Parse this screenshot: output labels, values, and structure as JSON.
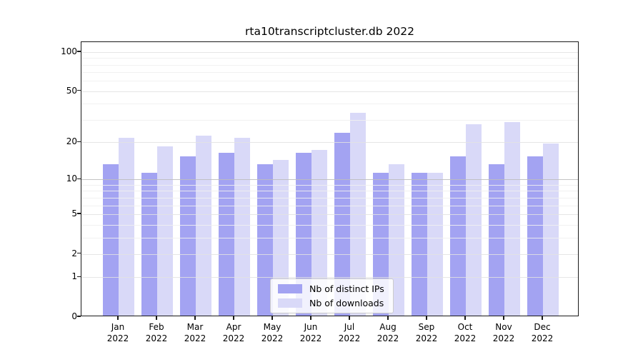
{
  "chart_data": {
    "type": "bar",
    "title": "rta10transcriptcluster.db 2022",
    "categories": [
      "Jan 2022",
      "Feb 2022",
      "Mar 2022",
      "Apr 2022",
      "May 2022",
      "Jun 2022",
      "Jul 2022",
      "Aug 2022",
      "Sep 2022",
      "Oct 2022",
      "Nov 2022",
      "Dec 2022"
    ],
    "series": [
      {
        "name": "Nb of distinct IPs",
        "color": "#a3a3f2",
        "values": [
          13,
          11,
          15,
          16,
          13,
          16,
          23,
          11,
          11,
          15,
          13,
          15
        ]
      },
      {
        "name": "Nb of downloads",
        "color": "#d9d9f8",
        "values": [
          21,
          18,
          22,
          21,
          14,
          17,
          33,
          13,
          11,
          27,
          28,
          19
        ]
      }
    ],
    "yscale": "log1p",
    "yticks": [
      0,
      1,
      2,
      5,
      10,
      20,
      50,
      100
    ],
    "y_gridlines": [
      1,
      2,
      3,
      4,
      5,
      6,
      7,
      8,
      9,
      10,
      20,
      30,
      40,
      50,
      60,
      70,
      80,
      90,
      100
    ],
    "ylim": [
      0,
      119
    ],
    "grid": true,
    "legend_position": "lower center",
    "xlabel": "",
    "ylabel": ""
  },
  "colors": {
    "ips_bar": "#a3a3f2",
    "downloads_bar": "#d9d9f8",
    "grid_major": "#e2e2e2",
    "grid_decade": "#bdbdbd",
    "grid_minor": "#f0f0f0",
    "axis": "#1a1a1a"
  }
}
